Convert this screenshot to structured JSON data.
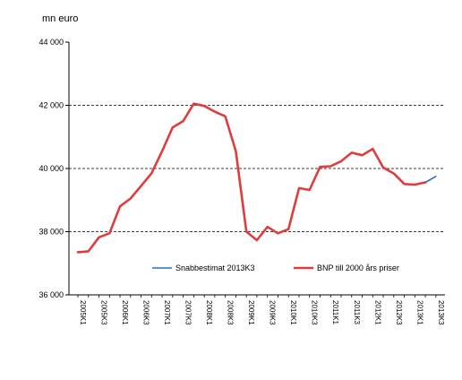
{
  "chart_data": {
    "type": "line",
    "unit_label": "mn euro",
    "ylim": [
      36000,
      44000
    ],
    "yticks": [
      36000,
      38000,
      40000,
      42000,
      44000
    ],
    "ytick_labels": [
      "36 000",
      "38 000",
      "40 000",
      "42 000",
      "44 000"
    ],
    "grid": "dashed horizontal at 38000, 40000, 42000",
    "x": [
      "2005K1",
      "2005K2",
      "2005K3",
      "2005K4",
      "2006K1",
      "2006K2",
      "2006K3",
      "2006K4",
      "2007K1",
      "2007K2",
      "2007K3",
      "2007K4",
      "2008K1",
      "2008K2",
      "2008K3",
      "2008K4",
      "2009K1",
      "2009K2",
      "2009K3",
      "2009K4",
      "2010K1",
      "2010K2",
      "2010K3",
      "2010K4",
      "2011K1",
      "2011K2",
      "2011K3",
      "2011K4",
      "2012K1",
      "2012K2",
      "2012K3",
      "2012K4",
      "2013K1",
      "2013K2",
      "2013K3"
    ],
    "xtick_labels": [
      "2005K1",
      "2005K3",
      "2006K1",
      "2006K3",
      "2007K1",
      "2007K3",
      "2008K1",
      "2008K3",
      "2009K1",
      "2009K3",
      "2010K1",
      "2010K3",
      "2011K1",
      "2011K3",
      "2012K1",
      "2012K3",
      "2013K1",
      "2013K3"
    ],
    "legend_position": "bottom-center inside plot",
    "series": [
      {
        "name": "BNP till 2000 års priser",
        "color": "#e03c3c",
        "values": [
          37350,
          37380,
          37820,
          37950,
          38800,
          39050,
          39450,
          39850,
          40550,
          41300,
          41500,
          42050,
          41980,
          41800,
          41650,
          40550,
          38000,
          37730,
          38150,
          37950,
          38080,
          39380,
          39320,
          40050,
          40070,
          40230,
          40500,
          40420,
          40620,
          40030,
          39840,
          39510,
          39490,
          39560,
          null
        ]
      },
      {
        "name": "Snabbestimat 2013K3",
        "color": "#2a70b8",
        "values": [
          null,
          null,
          null,
          null,
          null,
          null,
          null,
          null,
          null,
          null,
          null,
          null,
          null,
          null,
          null,
          null,
          null,
          null,
          null,
          null,
          null,
          null,
          null,
          null,
          null,
          null,
          null,
          null,
          null,
          null,
          null,
          null,
          null,
          39560,
          39750
        ]
      }
    ]
  }
}
